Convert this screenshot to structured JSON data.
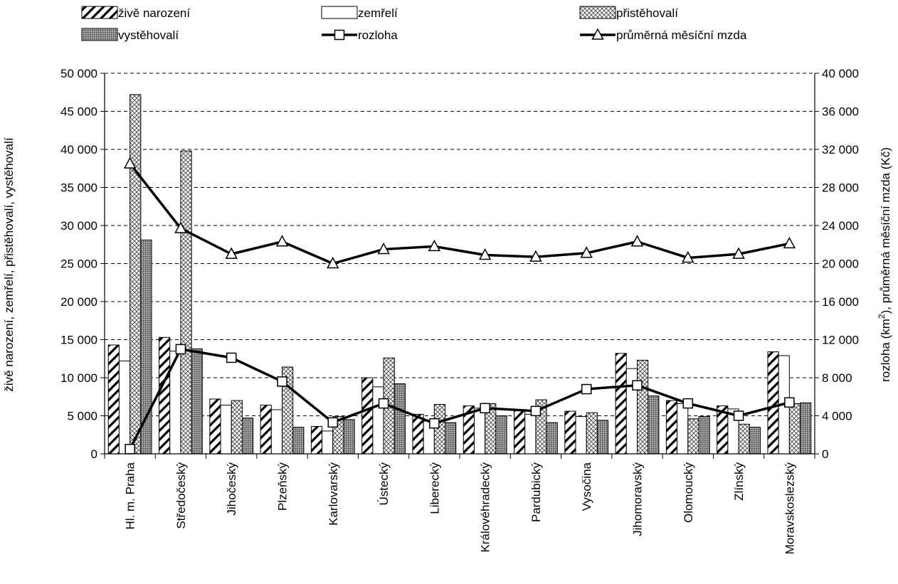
{
  "chart_data": {
    "type": "bar",
    "categories": [
      "Hl. m. Praha",
      "Středočeský",
      "Jihočeský",
      "Plzeňský",
      "Karlovarský",
      "Ústecký",
      "Liberecký",
      "Královéhradecký",
      "Pardubický",
      "Vysočina",
      "Jihomoravský",
      "Olomoucký",
      "Zlínský",
      "Moravskoslezský"
    ],
    "bar_series": [
      {
        "name": "živě narození",
        "pattern": "diagonal",
        "values": [
          14300,
          15300,
          7200,
          6400,
          3600,
          10000,
          5200,
          6300,
          5700,
          5600,
          13200,
          7000,
          6300,
          13400
        ]
      },
      {
        "name": "zemřelí",
        "pattern": "plain",
        "values": [
          12200,
          13500,
          6400,
          5800,
          3000,
          8800,
          4300,
          6000,
          5200,
          4900,
          11200,
          6600,
          5900,
          12900
        ]
      },
      {
        "name": "přistěhovalí",
        "pattern": "crosshatch",
        "values": [
          47200,
          39800,
          7000,
          11400,
          4900,
          12600,
          6500,
          6600,
          7100,
          5400,
          12300,
          4600,
          3900,
          6600
        ]
      },
      {
        "name": "vystěhovalí",
        "pattern": "dense",
        "values": [
          28100,
          13800,
          4700,
          3500,
          4500,
          9200,
          4100,
          5000,
          4100,
          4400,
          7600,
          4900,
          3500,
          6700
        ]
      }
    ],
    "line_series": [
      {
        "name": "rozloha",
        "marker": "square",
        "values": [
          500,
          11000,
          10100,
          7600,
          3300,
          5300,
          3200,
          4800,
          4500,
          6800,
          7200,
          5300,
          4000,
          5400
        ]
      },
      {
        "name": "průměrná měsíční mzda",
        "marker": "triangle",
        "values": [
          30500,
          23700,
          21000,
          22300,
          20000,
          21500,
          21800,
          20900,
          20700,
          21100,
          22300,
          20600,
          21000,
          22100
        ]
      }
    ],
    "left_axis": {
      "title": "živě narození, zemřelí, přistěhovalí, vystěhovalí",
      "ylim": [
        0,
        50000
      ],
      "ticks": [
        "0",
        "5 000",
        "10 000",
        "15 000",
        "20 000",
        "25 000",
        "30 000",
        "35 000",
        "40 000",
        "45 000",
        "50 000"
      ]
    },
    "right_axis": {
      "title_pre": "rozloha (km",
      "title_sup": "2",
      "title_post": "), průměrná měsíční mzda (Kč)",
      "ylim": [
        0,
        40000
      ],
      "ticks": [
        "0",
        "4 000",
        "8 000",
        "12 000",
        "16 000",
        "20 000",
        "24 000",
        "28 000",
        "32 000",
        "36 000",
        "40 000"
      ]
    },
    "grid": "horizontal dashed",
    "legend_placement": "top"
  }
}
